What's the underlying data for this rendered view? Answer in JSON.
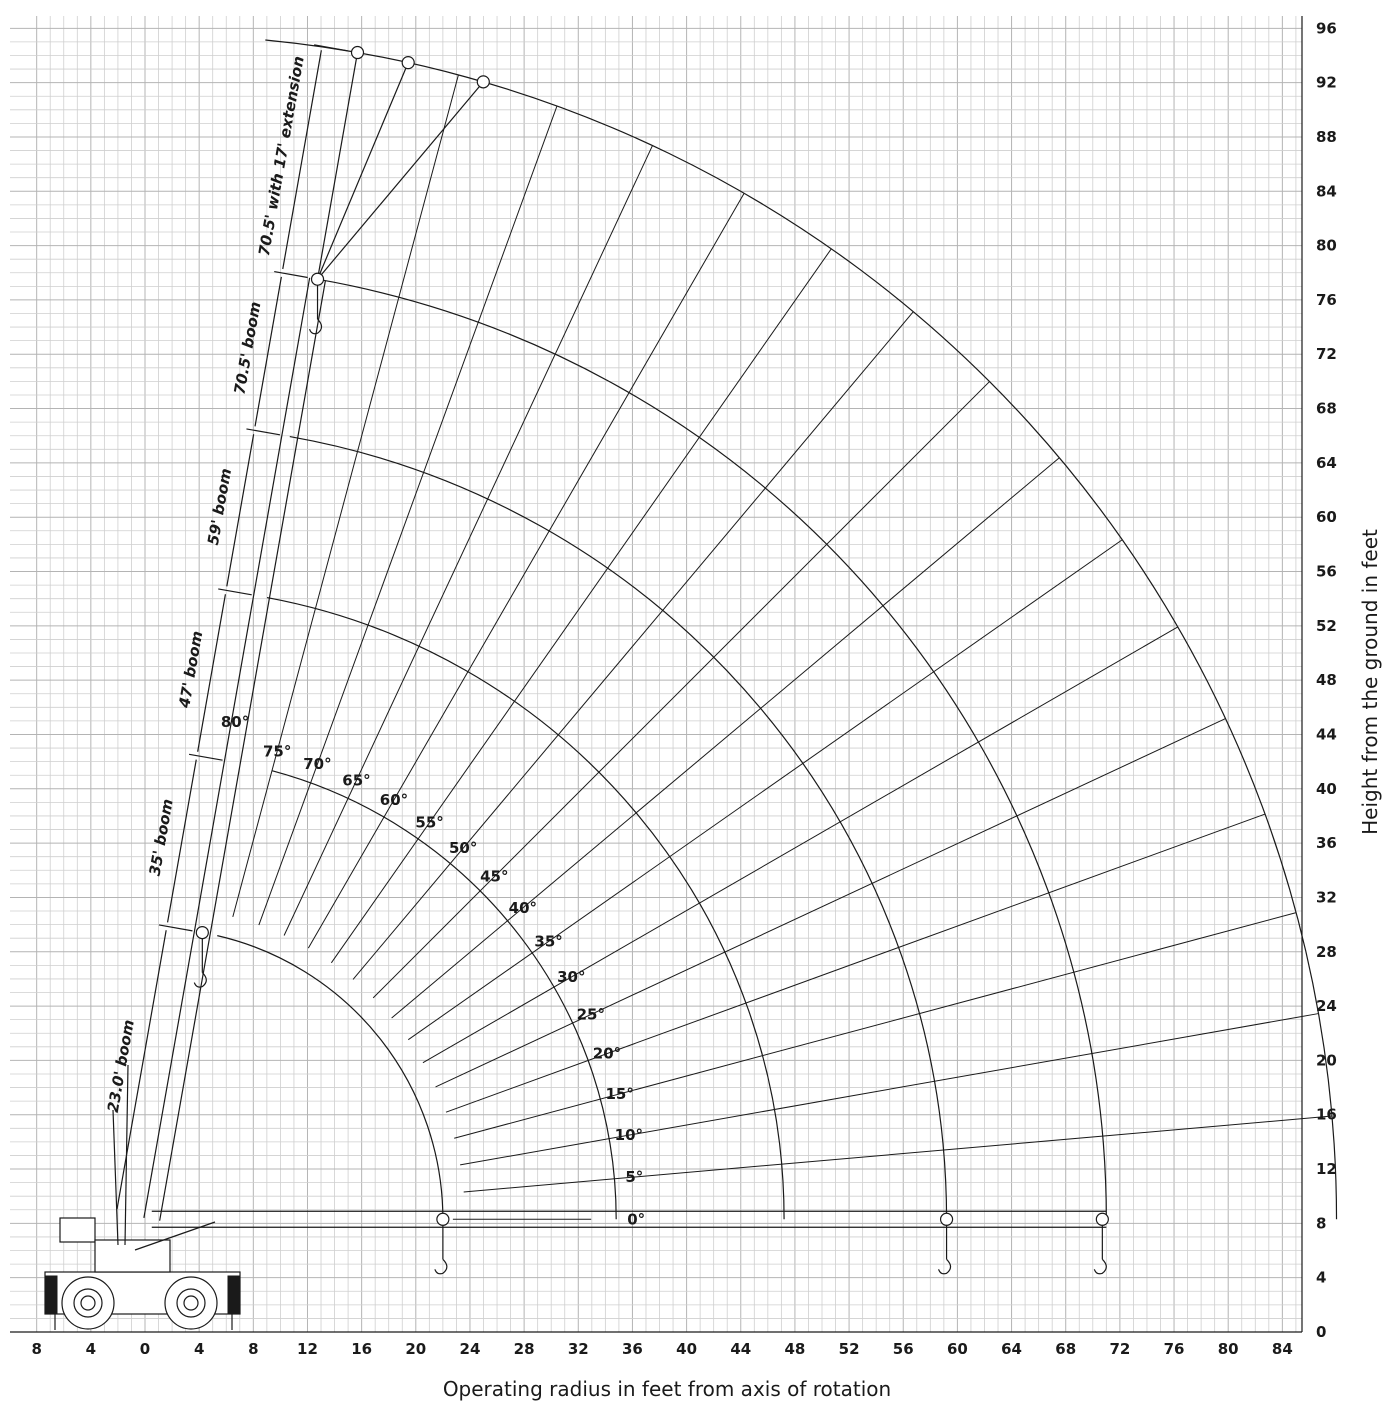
{
  "chart_data": {
    "type": "range-diagram",
    "xlabel": "Operating radius in feet from axis of rotation",
    "ylabel": "Height from the ground in feet",
    "x_ticks": [
      "8",
      "4",
      "0",
      "4",
      "8",
      "12",
      "16",
      "20",
      "24",
      "28",
      "32",
      "36",
      "40",
      "44",
      "48",
      "52",
      "56",
      "60",
      "64",
      "68",
      "72",
      "76",
      "80",
      "84"
    ],
    "y_ticks": [
      "0",
      "4",
      "8",
      "12",
      "16",
      "20",
      "24",
      "28",
      "32",
      "36",
      "40",
      "44",
      "48",
      "52",
      "56",
      "60",
      "64",
      "68",
      "72",
      "76",
      "80",
      "84",
      "88",
      "92",
      "96"
    ],
    "xlim": [
      -8,
      86
    ],
    "ylim": [
      0,
      97
    ],
    "grid": true,
    "pivot": {
      "x": 0.5,
      "y": 8.3
    },
    "angles": [
      "0°",
      "5°",
      "10°",
      "15°",
      "20°",
      "25°",
      "30°",
      "35°",
      "40°",
      "45°",
      "50°",
      "55°",
      "60°",
      "65°",
      "70°",
      "75°",
      "80°"
    ],
    "angle_values": [
      0,
      5,
      10,
      15,
      20,
      25,
      30,
      35,
      40,
      45,
      50,
      55,
      60,
      65,
      70,
      75,
      80
    ],
    "booms": [
      {
        "label": "23.0' boom",
        "radius": 21.5
      },
      {
        "label": "35' boom",
        "radius": 34.3
      },
      {
        "label": "47' boom",
        "radius": 46.7
      },
      {
        "label": "59' boom",
        "radius": 58.7
      },
      {
        "label": "70.5' boom",
        "radius": 70.5
      },
      {
        "label": "70.5' with 17' extension",
        "radius": 87.5
      }
    ]
  }
}
